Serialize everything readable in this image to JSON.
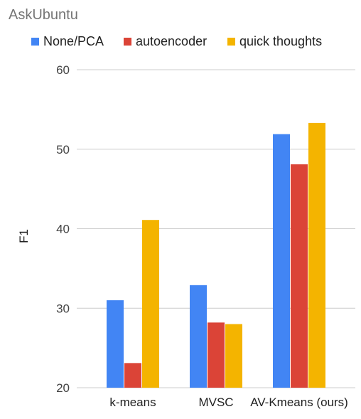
{
  "chart_data": {
    "type": "bar",
    "title": "AskUbuntu",
    "xlabel": "",
    "ylabel": "F1",
    "ylim": [
      20,
      60
    ],
    "yticks": [
      20,
      30,
      40,
      50,
      60
    ],
    "grid": true,
    "legend_position": "top",
    "categories": [
      "k-means",
      "MVSC",
      "AV-Kmeans (ours)"
    ],
    "series": [
      {
        "name": "None/PCA",
        "color": "#4285f4",
        "values": [
          31.0,
          32.9,
          51.9
        ]
      },
      {
        "name": "autoencoder",
        "color": "#db4437",
        "values": [
          23.1,
          28.2,
          48.1
        ]
      },
      {
        "name": "quick thoughts",
        "color": "#f4b400",
        "values": [
          41.1,
          28.0,
          53.3
        ]
      }
    ]
  }
}
